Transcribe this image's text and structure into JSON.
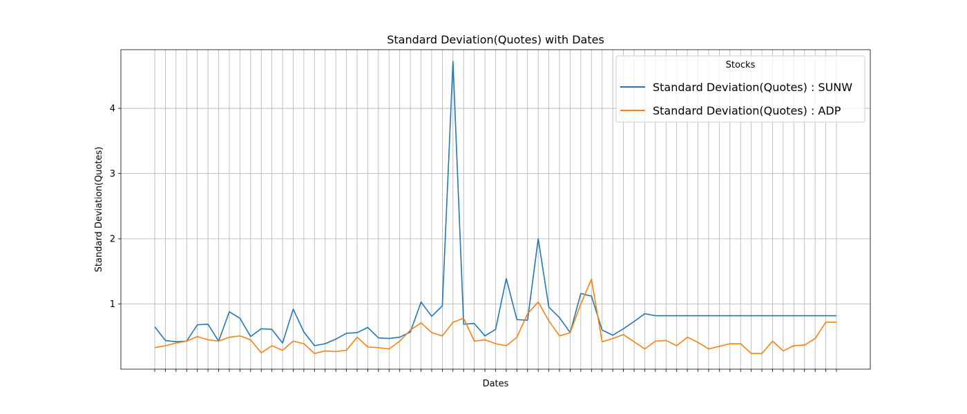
{
  "chart_data": {
    "type": "line",
    "title": "Standard Deviation(Quotes) with Dates",
    "xlabel": "Dates",
    "ylabel": "Standard Deviation(Quotes)",
    "ylim": [
      0,
      4.9
    ],
    "yticks": [
      1,
      2,
      3,
      4
    ],
    "grid": true,
    "legend": {
      "title": "Stocks",
      "placement": "top-right"
    },
    "x": [
      0,
      1,
      2,
      3,
      4,
      5,
      6,
      7,
      8,
      9,
      10,
      11,
      12,
      13,
      14,
      15,
      16,
      17,
      18,
      19,
      20,
      21,
      22,
      23,
      24,
      25,
      26,
      27,
      28,
      29,
      30,
      31,
      32,
      33,
      34,
      35,
      36,
      37,
      38,
      39,
      40,
      41,
      42,
      43,
      44,
      45,
      46,
      47,
      48,
      49,
      50,
      51,
      52,
      53,
      54,
      55,
      56,
      57,
      58,
      59,
      60,
      61,
      62,
      63,
      64
    ],
    "series": [
      {
        "name": "Standard Deviation(Quotes) : SUNW",
        "color": "#1f77b4",
        "values": [
          0.65,
          0.44,
          0.42,
          0.43,
          0.68,
          0.69,
          0.43,
          0.88,
          0.78,
          0.5,
          0.62,
          0.61,
          0.4,
          0.92,
          0.57,
          0.36,
          0.39,
          0.46,
          0.55,
          0.56,
          0.64,
          0.48,
          0.47,
          0.49,
          0.57,
          1.03,
          0.81,
          0.97,
          4.72,
          0.69,
          0.7,
          0.51,
          0.61,
          1.39,
          0.76,
          0.75,
          2.0,
          0.95,
          0.79,
          0.56,
          1.16,
          1.12,
          0.6,
          0.52,
          0.62,
          0.73,
          0.85,
          0.82,
          0.82,
          0.82,
          0.82,
          0.82,
          0.82,
          0.82,
          0.82,
          0.82,
          0.82,
          0.82,
          0.82,
          0.82,
          0.82,
          0.82,
          0.82,
          0.82,
          0.82
        ]
      },
      {
        "name": "Standard Deviation(Quotes) : ADP",
        "color": "#ff7f0e",
        "values": [
          0.33,
          0.36,
          0.4,
          0.43,
          0.5,
          0.45,
          0.43,
          0.49,
          0.51,
          0.45,
          0.25,
          0.36,
          0.29,
          0.43,
          0.39,
          0.24,
          0.28,
          0.27,
          0.29,
          0.49,
          0.34,
          0.33,
          0.31,
          0.43,
          0.6,
          0.71,
          0.56,
          0.51,
          0.72,
          0.78,
          0.43,
          0.45,
          0.39,
          0.36,
          0.49,
          0.85,
          1.03,
          0.74,
          0.51,
          0.56,
          1.0,
          1.38,
          0.42,
          0.47,
          0.53,
          0.42,
          0.31,
          0.43,
          0.44,
          0.36,
          0.49,
          0.41,
          0.31,
          0.35,
          0.39,
          0.39,
          0.24,
          0.24,
          0.43,
          0.28,
          0.36,
          0.37,
          0.47,
          0.72,
          0.72
        ]
      }
    ]
  }
}
